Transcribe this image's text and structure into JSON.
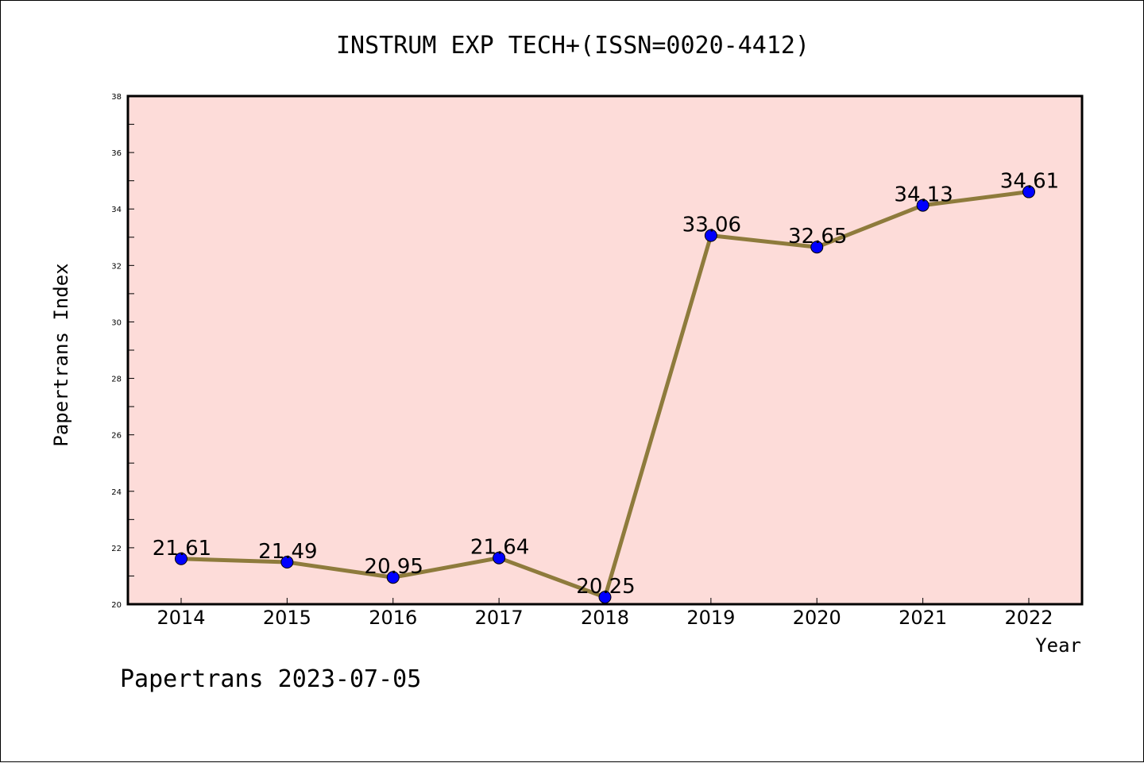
{
  "footer": {
    "text": "Papertrans 2023-07-05"
  },
  "chart_data": {
    "type": "line",
    "title": "INSTRUM EXP TECH+(ISSN=0020-4412)",
    "xlabel": "Year",
    "ylabel": "Papertrans Index",
    "categories": [
      "2014",
      "2015",
      "2016",
      "2017",
      "2018",
      "2019",
      "2020",
      "2021",
      "2022"
    ],
    "values": [
      21.61,
      21.49,
      20.95,
      21.64,
      20.25,
      33.06,
      32.65,
      34.13,
      34.61
    ],
    "data_labels": [
      "21.61",
      "21.49",
      "20.95",
      "21.64",
      "20.25",
      "33.06",
      "32.65",
      "34.13",
      "34.61"
    ],
    "ylim": [
      20,
      38
    ],
    "yticks": [
      "20",
      "22",
      "24",
      "26",
      "28",
      "30",
      "32",
      "34",
      "36",
      "38"
    ],
    "grid": false,
    "colors": {
      "plot_background": "#fddcd9",
      "line": "#8e7b3c",
      "marker": "#0000ff"
    }
  }
}
